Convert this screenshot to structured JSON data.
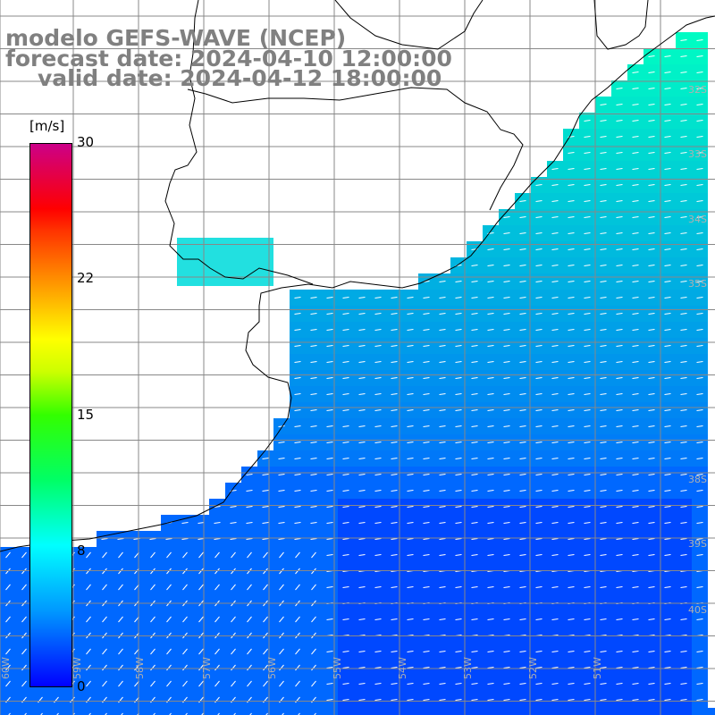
{
  "title": {
    "line1": "modelo GEFS-WAVE (NCEP)",
    "line2": "forecast date: 2024-04-10 12:00:00",
    "line3": "valid date: 2024-04-12 18:00:00"
  },
  "colorbar": {
    "unit_label": "[m/s]",
    "ticks": [
      "30",
      "22",
      "15",
      "8",
      "0"
    ],
    "tick_values": [
      30,
      22,
      15,
      8,
      0
    ]
  },
  "lat_labels": [
    "32S",
    "33S",
    "34S",
    "35S",
    "38S",
    "39S",
    "40S"
  ],
  "lon_labels": [
    "60W",
    "59W",
    "58W",
    "57W",
    "56W",
    "55W",
    "54W",
    "53W",
    "52W",
    "51W"
  ],
  "colors": {
    "coast": "#000000",
    "grid": "#888888",
    "arrows": "#ffffff",
    "title": "#808080"
  }
}
